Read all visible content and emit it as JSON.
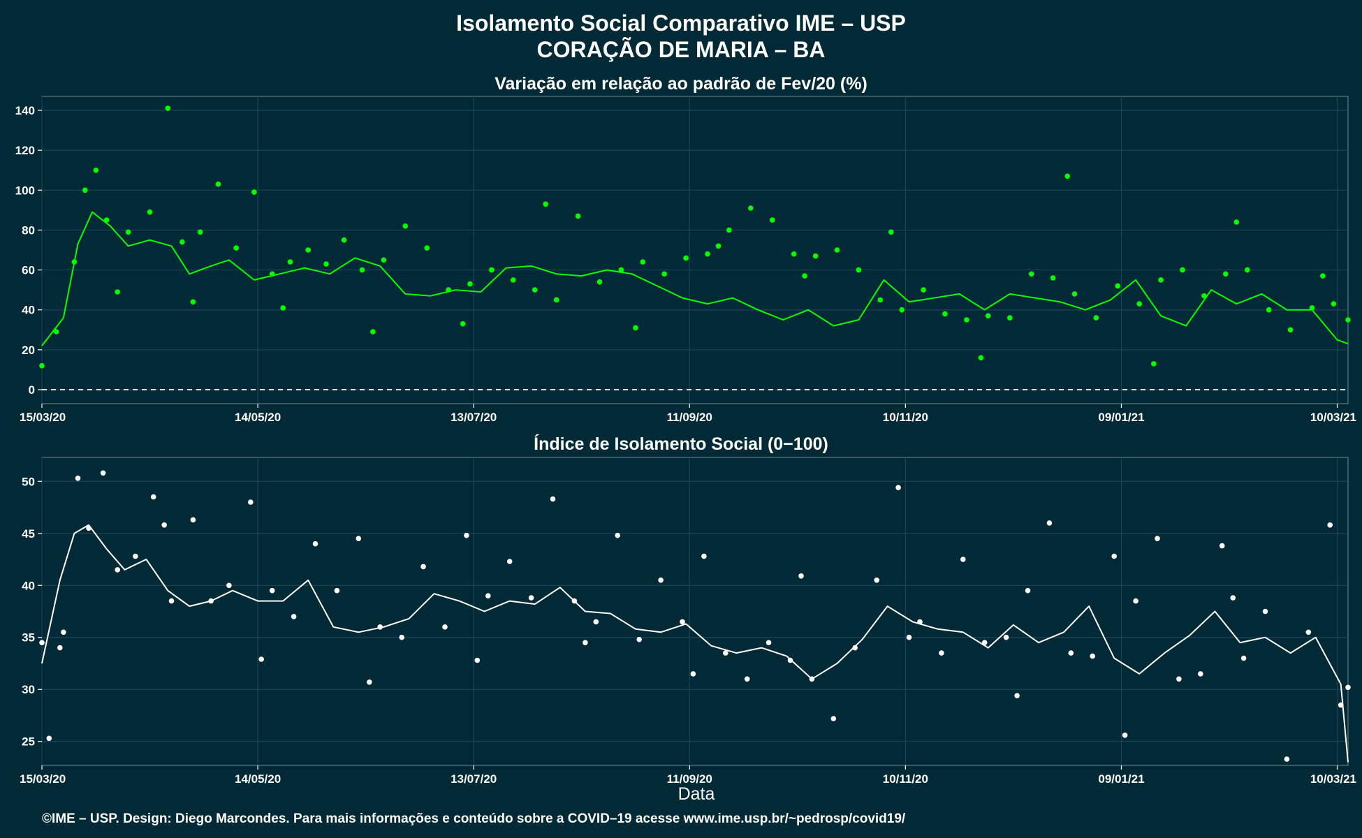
{
  "header": {
    "title_line1": "Isolamento Social Comparativo IME – USP",
    "title_line2": "CORAÇÃO DE MARIA – BA"
  },
  "footer": {
    "credit": "©IME – USP. Design: Diego Marcondes. Para mais informações e conteúdo sobre a COVID–19 acesse www.ime.usp.br/~pedrosp/covid19/"
  },
  "colors": {
    "background": "#012a36",
    "panel": "#012a36",
    "top_series": "#00ff00",
    "bottom_series": "#ffffff",
    "grid": "#1c4452"
  },
  "chart_data": [
    {
      "type": "scatter",
      "title": "Variação em relação ao padrão de Fev/20 (%)",
      "xlabel": "",
      "ylabel": "",
      "x_range": [
        "2020-03-15",
        "2021-03-13"
      ],
      "ylim": [
        -7,
        147
      ],
      "yticks": [
        0,
        20,
        40,
        60,
        80,
        100,
        120,
        140
      ],
      "xticks": [
        "15/03/20",
        "14/05/20",
        "13/07/20",
        "11/09/20",
        "10/11/20",
        "09/01/21",
        "10/03/21"
      ],
      "reference_line": 0,
      "grid": true,
      "series": [
        {
          "kind": "points",
          "color": "#00ff00",
          "x": [
            "2020-03-15",
            "2020-03-19",
            "2020-03-24",
            "2020-03-27",
            "2020-03-30",
            "2020-04-02",
            "2020-04-08",
            "2020-04-14",
            "2020-04-19",
            "2020-04-23",
            "2020-04-28",
            "2020-05-03",
            "2020-05-08",
            "2020-05-13",
            "2020-05-18",
            "2020-05-23",
            "2020-05-28",
            "2020-06-02",
            "2020-06-07",
            "2020-06-12",
            "2020-06-18",
            "2020-06-24",
            "2020-06-30",
            "2020-07-06",
            "2020-07-12",
            "2020-07-18",
            "2020-07-24",
            "2020-07-30",
            "2020-08-05",
            "2020-08-11",
            "2020-08-17",
            "2020-08-23",
            "2020-08-29",
            "2020-09-04",
            "2020-09-10",
            "2020-09-16",
            "2020-09-22",
            "2020-09-28",
            "2020-10-04",
            "2020-10-10",
            "2020-10-16",
            "2020-10-22",
            "2020-10-28",
            "2020-11-03",
            "2020-11-09",
            "2020-11-15",
            "2020-11-21",
            "2020-11-27",
            "2020-12-03",
            "2020-12-09",
            "2020-12-15",
            "2020-12-21",
            "2020-12-27",
            "2021-01-02",
            "2021-01-08",
            "2021-01-14",
            "2021-01-20",
            "2021-01-26",
            "2021-02-01",
            "2021-02-07",
            "2021-02-13",
            "2021-02-19",
            "2021-02-25",
            "2021-03-03",
            "2021-03-09",
            "2021-03-13"
          ],
          "y": [
            12,
            29,
            64,
            100,
            110,
            85,
            79,
            89,
            141,
            74,
            79,
            103,
            71,
            99,
            58,
            64,
            70,
            63,
            75,
            60,
            65,
            82,
            71,
            50,
            53,
            60,
            55,
            50,
            45,
            87,
            54,
            60,
            64,
            58,
            66,
            68,
            80,
            91,
            85,
            68,
            67,
            70,
            60,
            45,
            40,
            50,
            38,
            35,
            37,
            36,
            58,
            56,
            48,
            36,
            52,
            43,
            55,
            60,
            47,
            58,
            60,
            40,
            30,
            41,
            43,
            35
          ],
          "x_extra": [
            "2020-04-05",
            "2020-04-26",
            "2020-05-21",
            "2020-06-15",
            "2020-07-10",
            "2020-08-02",
            "2020-08-27",
            "2020-09-19",
            "2020-10-13",
            "2020-11-06",
            "2020-12-01",
            "2020-12-25",
            "2021-01-18",
            "2021-02-10",
            "2021-03-06"
          ],
          "y_extra": [
            49,
            44,
            41,
            29,
            33,
            93,
            31,
            72,
            57,
            79,
            16,
            107,
            13,
            84,
            57
          ]
        },
        {
          "kind": "moving-average",
          "color": "#00ff00",
          "x": [
            "2020-03-15",
            "2020-03-21",
            "2020-03-25",
            "2020-03-29",
            "2020-04-03",
            "2020-04-08",
            "2020-04-14",
            "2020-04-20",
            "2020-04-25",
            "2020-05-01",
            "2020-05-06",
            "2020-05-13",
            "2020-05-20",
            "2020-05-27",
            "2020-06-03",
            "2020-06-10",
            "2020-06-17",
            "2020-06-24",
            "2020-07-01",
            "2020-07-08",
            "2020-07-15",
            "2020-07-22",
            "2020-07-29",
            "2020-08-05",
            "2020-08-12",
            "2020-08-19",
            "2020-08-26",
            "2020-09-02",
            "2020-09-09",
            "2020-09-16",
            "2020-09-23",
            "2020-09-30",
            "2020-10-07",
            "2020-10-14",
            "2020-10-21",
            "2020-10-28",
            "2020-11-04",
            "2020-11-11",
            "2020-11-18",
            "2020-11-25",
            "2020-12-02",
            "2020-12-09",
            "2020-12-16",
            "2020-12-23",
            "2020-12-30",
            "2021-01-06",
            "2021-01-13",
            "2021-01-20",
            "2021-01-27",
            "2021-02-03",
            "2021-02-10",
            "2021-02-17",
            "2021-02-24",
            "2021-03-03",
            "2021-03-10",
            "2021-03-13"
          ],
          "y": [
            22,
            36,
            73,
            89,
            82,
            72,
            75,
            72,
            58,
            62,
            65,
            55,
            58,
            61,
            58,
            66,
            62,
            48,
            47,
            50,
            49,
            61,
            62,
            58,
            57,
            60,
            58,
            52,
            46,
            43,
            46,
            40,
            35,
            40,
            32,
            35,
            55,
            44,
            46,
            48,
            40,
            48,
            46,
            44,
            40,
            45,
            55,
            37,
            32,
            50,
            43,
            48,
            40,
            40,
            25,
            23
          ]
        }
      ]
    },
    {
      "type": "scatter",
      "title": "Índice de Isolamento Social (0−100)",
      "xlabel": "Data",
      "ylabel": "",
      "x_range": [
        "2020-03-15",
        "2021-03-13"
      ],
      "ylim": [
        22.7,
        52.3
      ],
      "yticks": [
        25,
        30,
        35,
        40,
        45,
        50
      ],
      "xticks": [
        "15/03/20",
        "14/05/20",
        "13/07/20",
        "11/09/20",
        "10/11/20",
        "09/01/21",
        "10/03/21"
      ],
      "grid": true,
      "series": [
        {
          "kind": "points",
          "color": "#ffffff",
          "x": [
            "2020-03-15",
            "2020-03-17",
            "2020-03-21",
            "2020-03-25",
            "2020-03-28",
            "2020-04-01",
            "2020-04-05",
            "2020-04-10",
            "2020-04-15",
            "2020-04-20",
            "2020-04-26",
            "2020-05-01",
            "2020-05-06",
            "2020-05-12",
            "2020-05-18",
            "2020-05-24",
            "2020-05-30",
            "2020-06-05",
            "2020-06-11",
            "2020-06-17",
            "2020-06-23",
            "2020-06-29",
            "2020-07-05",
            "2020-07-11",
            "2020-07-17",
            "2020-07-23",
            "2020-07-29",
            "2020-08-04",
            "2020-08-10",
            "2020-08-16",
            "2020-08-22",
            "2020-08-28",
            "2020-09-03",
            "2020-09-09",
            "2020-09-15",
            "2020-09-21",
            "2020-09-27",
            "2020-10-03",
            "2020-10-09",
            "2020-10-15",
            "2020-10-21",
            "2020-10-27",
            "2020-11-02",
            "2020-11-08",
            "2020-11-14",
            "2020-11-20",
            "2020-11-26",
            "2020-12-02",
            "2020-12-08",
            "2020-12-14",
            "2020-12-20",
            "2020-12-26",
            "2021-01-01",
            "2021-01-07",
            "2021-01-13",
            "2021-01-19",
            "2021-01-25",
            "2021-01-31",
            "2021-02-06",
            "2021-02-12",
            "2021-02-18",
            "2021-02-24",
            "2021-03-02",
            "2021-03-08",
            "2021-03-13"
          ],
          "y": [
            34.5,
            25.3,
            35.5,
            50.3,
            45.5,
            50.8,
            41.5,
            42.8,
            48.5,
            38.5,
            46.3,
            38.5,
            40,
            48,
            39.5,
            37,
            44,
            39.5,
            44.5,
            36,
            35,
            41.8,
            36,
            44.8,
            39,
            42.3,
            38.8,
            48.3,
            38.5,
            36.5,
            44.8,
            34.8,
            40.5,
            36.5,
            42.8,
            33.5,
            31,
            34.5,
            32.8,
            31,
            27.2,
            34,
            40.5,
            49.4,
            36.5,
            33.5,
            42.5,
            34.5,
            35,
            39.5,
            46,
            33.5,
            33.2,
            42.8,
            38.5,
            44.5,
            31,
            31.5,
            43.8,
            33,
            37.5,
            23.3,
            35.5,
            45.8,
            30.2
          ],
          "x_extra": [
            "2020-03-20",
            "2020-04-18",
            "2020-05-15",
            "2020-06-14",
            "2020-07-14",
            "2020-08-13",
            "2020-09-12",
            "2020-10-12",
            "2020-11-11",
            "2020-12-11",
            "2021-01-10",
            "2021-02-09",
            "2021-03-11"
          ],
          "y_extra": [
            34,
            45.8,
            32.9,
            30.7,
            32.8,
            34.5,
            31.5,
            40.9,
            35,
            29.4,
            25.6,
            38.8,
            28.5
          ]
        },
        {
          "kind": "moving-average",
          "color": "#ffffff",
          "x": [
            "2020-03-15",
            "2020-03-20",
            "2020-03-24",
            "2020-03-28",
            "2020-04-02",
            "2020-04-07",
            "2020-04-13",
            "2020-04-19",
            "2020-04-25",
            "2020-05-01",
            "2020-05-07",
            "2020-05-14",
            "2020-05-21",
            "2020-05-28",
            "2020-06-04",
            "2020-06-11",
            "2020-06-18",
            "2020-06-25",
            "2020-07-02",
            "2020-07-09",
            "2020-07-16",
            "2020-07-23",
            "2020-07-30",
            "2020-08-06",
            "2020-08-13",
            "2020-08-20",
            "2020-08-27",
            "2020-09-03",
            "2020-09-10",
            "2020-09-17",
            "2020-09-24",
            "2020-10-01",
            "2020-10-08",
            "2020-10-15",
            "2020-10-22",
            "2020-10-29",
            "2020-11-05",
            "2020-11-12",
            "2020-11-19",
            "2020-11-26",
            "2020-12-03",
            "2020-12-10",
            "2020-12-17",
            "2020-12-24",
            "2020-12-31",
            "2021-01-07",
            "2021-01-14",
            "2021-01-21",
            "2021-01-28",
            "2021-02-04",
            "2021-02-11",
            "2021-02-18",
            "2021-02-25",
            "2021-03-04",
            "2021-03-11",
            "2021-03-13"
          ],
          "y": [
            32.5,
            40.5,
            45,
            45.8,
            43.5,
            41.5,
            42.5,
            39.5,
            38,
            38.5,
            39.5,
            38.5,
            38.5,
            40.5,
            36,
            35.5,
            36,
            36.8,
            39.2,
            38.5,
            37.5,
            38.5,
            38.2,
            39.8,
            37.5,
            37.3,
            35.8,
            35.5,
            36.3,
            34.2,
            33.5,
            34,
            33.2,
            31,
            32.5,
            34.8,
            38,
            36.5,
            35.8,
            35.5,
            34,
            36.2,
            34.5,
            35.5,
            38,
            33,
            31.5,
            33.5,
            35.2,
            37.5,
            34.5,
            35,
            33.5,
            35,
            30.5,
            23
          ]
        }
      ]
    }
  ]
}
